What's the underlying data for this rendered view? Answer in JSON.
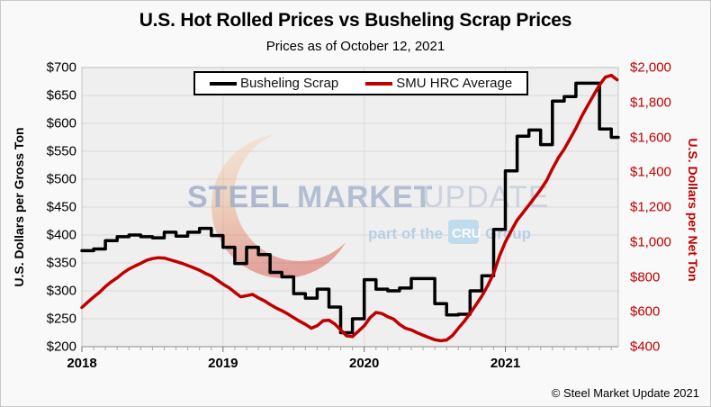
{
  "chart_data": {
    "type": "line",
    "title": "U.S. Hot Rolled Prices vs Busheling Scrap Prices",
    "subtitle": "Prices as of October 12, 2021",
    "grid": true,
    "plot_bg_color": "#efefef",
    "gridline_color": "#d9d9d9",
    "frame_color": "#c2c2c2",
    "axis_line_color": "#8c8c8c",
    "legend": {
      "position": "top-center",
      "entries": [
        {
          "label": "Busheling Scrap",
          "color": "#000000"
        },
        {
          "label": "SMU HRC Average",
          "color": "#c00000"
        }
      ]
    },
    "x_axis": {
      "min": 2018.0,
      "max": 2021.8,
      "tick_labels": [
        "2018",
        "2019",
        "2020",
        "2021"
      ],
      "tick_values": [
        2018,
        2019,
        2020,
        2021
      ],
      "minor_tick_interval_years": 0.0833333
    },
    "left_axis": {
      "title": "U.S. Dollars per Gross Ton",
      "min": 200,
      "max": 700,
      "tick_labels": [
        "$700",
        "$650",
        "$600",
        "$550",
        "$500",
        "$450",
        "$400",
        "$350",
        "$300",
        "$250",
        "$200"
      ],
      "tick_values": [
        700,
        650,
        600,
        550,
        500,
        450,
        400,
        350,
        300,
        250,
        200
      ],
      "color": "#000000"
    },
    "right_axis": {
      "title": "U.S. Dollars per Net Ton",
      "min": 400,
      "max": 2000,
      "tick_labels": [
        "$2,000",
        "$1,800",
        "$1,600",
        "$1,400",
        "$1,200",
        "$1,000",
        "$800",
        "$600",
        "$400"
      ],
      "tick_values": [
        2000,
        1800,
        1600,
        1400,
        1200,
        1000,
        800,
        600,
        400
      ],
      "color": "#c00000"
    },
    "series": [
      {
        "name": "Busheling Scrap",
        "axis": "left",
        "units": "USD per gross ton",
        "color": "#000000",
        "line_width": 3.5,
        "style": "step",
        "x_start": 2018.0,
        "x_step_years": 0.0833333,
        "values": [
          372,
          375,
          390,
          397,
          400,
          397,
          395,
          405,
          398,
          405,
          412,
          399,
          378,
          349,
          378,
          365,
          333,
          325,
          295,
          287,
          303,
          271,
          225,
          250,
          320,
          303,
          300,
          305,
          322,
          322,
          277,
          257,
          258,
          300,
          327,
          410,
          515,
          577,
          588,
          562,
          640,
          648,
          672,
          672,
          590,
          575
        ]
      },
      {
        "name": "SMU HRC Average",
        "axis": "right",
        "units": "USD per net ton",
        "color": "#c00000",
        "line_width": 3.5,
        "style": "line",
        "x_start": 2018.0,
        "x_step_years": 0.0416667,
        "values": [
          625,
          655,
          685,
          712,
          745,
          772,
          795,
          822,
          845,
          862,
          878,
          895,
          905,
          910,
          908,
          898,
          888,
          878,
          865,
          852,
          838,
          820,
          805,
          782,
          758,
          738,
          712,
          686,
          692,
          700,
          680,
          663,
          642,
          622,
          606,
          588,
          566,
          546,
          528,
          506,
          520,
          548,
          552,
          530,
          496,
          462,
          458,
          488,
          520,
          566,
          596,
          590,
          572,
          558,
          528,
          506,
          496,
          480,
          466,
          452,
          440,
          434,
          438,
          464,
          505,
          545,
          590,
          640,
          690,
          750,
          820,
          920,
          1000,
          1065,
          1125,
          1168,
          1212,
          1256,
          1300,
          1352,
          1420,
          1482,
          1532,
          1592,
          1652,
          1722,
          1782,
          1842,
          1900,
          1945,
          1955,
          1930
        ]
      }
    ]
  },
  "watermark": {
    "word1": "STEEL",
    "word2": "MARKET",
    "word3": "UPDATE",
    "tagline_prefix": "part of the",
    "tagline_badge": "CRU",
    "tagline_suffix": "Group",
    "text_color_1": "#a2afca",
    "text_color_2": "#a9b6ce",
    "text_color_3": "#c6cede",
    "tagline_color": "#aecbe5",
    "badge_bg": "#b9d8ee",
    "badge_text_color": "#ffffff",
    "crescent_top_color": "#f8ddc2",
    "crescent_mid_color": "#eda173",
    "crescent_bottom_color": "#d2372a"
  },
  "footer": {
    "copyright": "© Steel Market Update 2021"
  }
}
